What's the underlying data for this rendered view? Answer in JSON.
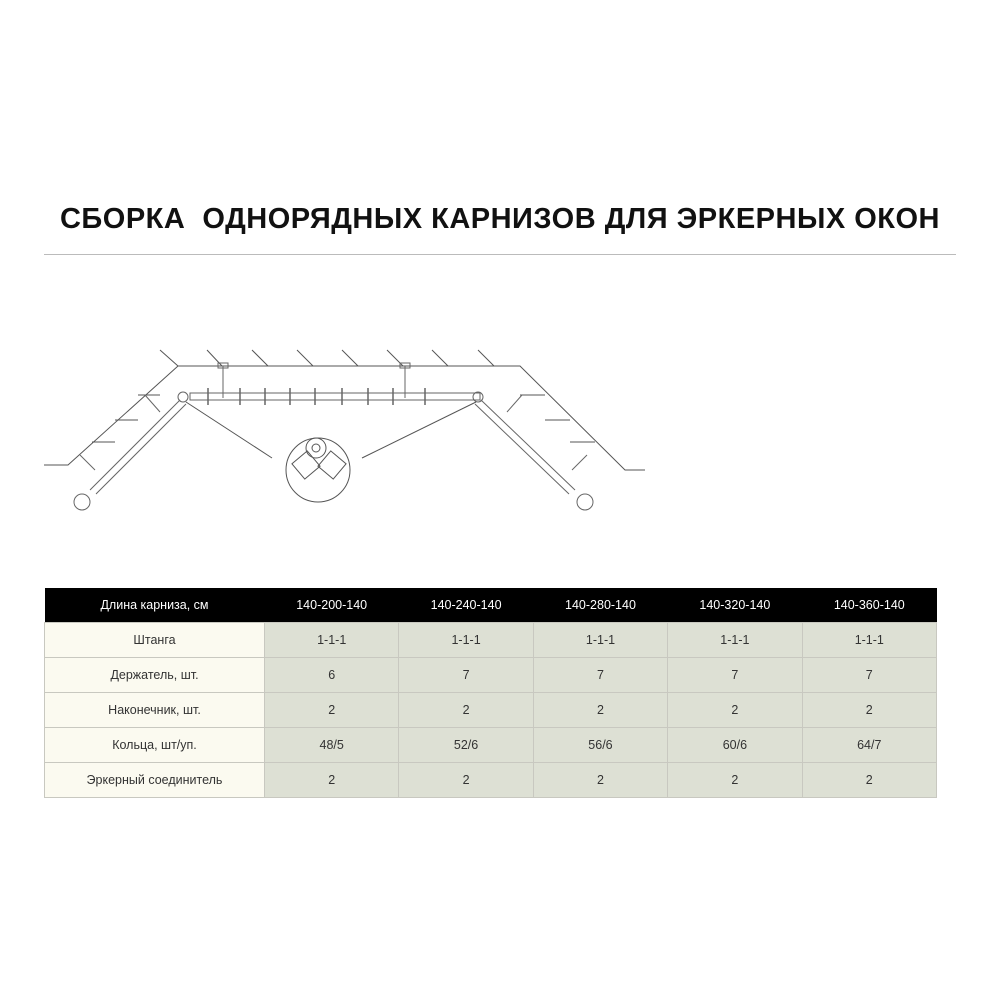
{
  "title": "СБОРКА  ОДНОРЯДНЫХ КАРНИЗОВ ДЛЯ ЭРКЕРНЫХ ОКОН",
  "table": {
    "header": [
      "Длина карниза, см",
      "140-200-140",
      "140-240-140",
      "140-280-140",
      "140-320-140",
      "140-360-140"
    ],
    "rows": [
      [
        "Штанга",
        "1-1-1",
        "1-1-1",
        "1-1-1",
        "1-1-1",
        "1-1-1"
      ],
      [
        "Держатель, шт.",
        "6",
        "7",
        "7",
        "7",
        "7"
      ],
      [
        "Наконечник, шт.",
        "2",
        "2",
        "2",
        "2",
        "2"
      ],
      [
        "Кольца, шт/уп.",
        "48/5",
        "52/6",
        "56/6",
        "60/6",
        "64/7"
      ],
      [
        "Эркерный соединитель",
        "2",
        "2",
        "2",
        "2",
        "2"
      ]
    ]
  },
  "colors": {
    "header_bg": "#000000",
    "label_bg": "#fbfaf0",
    "value_bg": "#dde0d4"
  }
}
